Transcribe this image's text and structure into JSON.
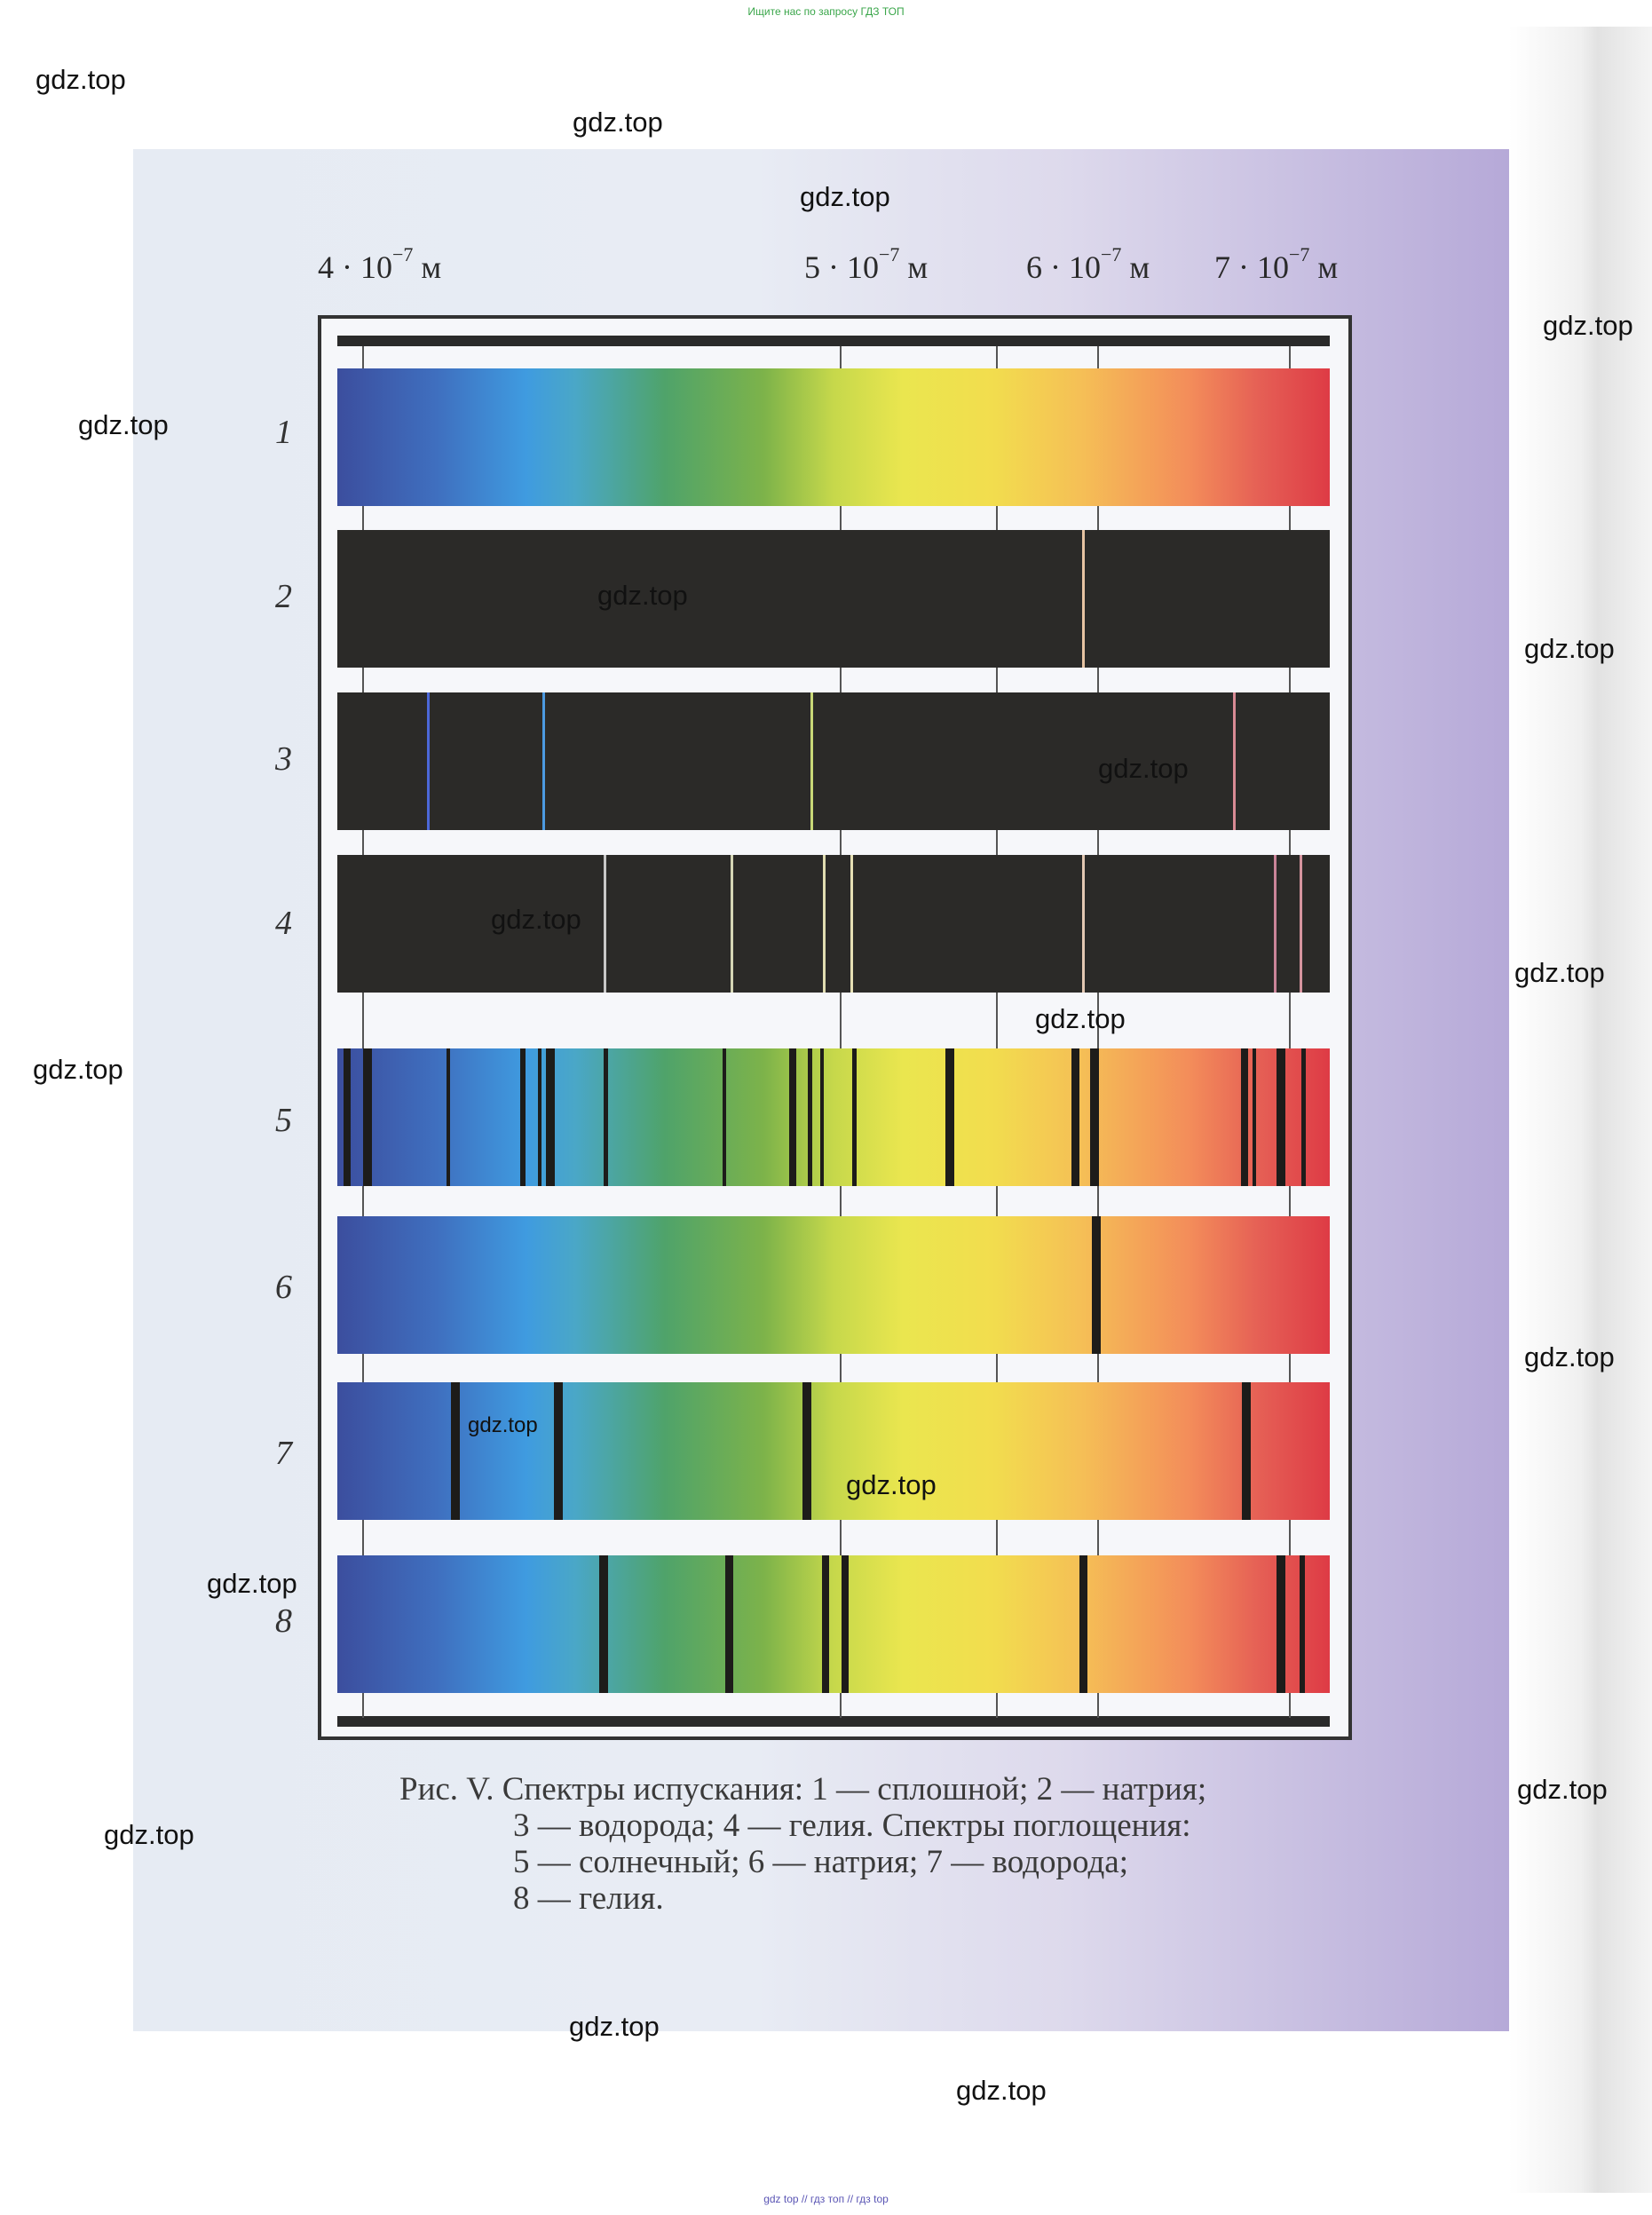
{
  "banner_top": "Ищите нас по запросу ГДЗ ТОП",
  "banner_bottom": "gdz top  //  гдз топ  //  гдз top",
  "axis": {
    "labels": [
      {
        "mantissa": "4 · 10",
        "exp": "−7",
        "unit": "м"
      },
      {
        "mantissa": "5 · 10",
        "exp": "−7",
        "unit": "м"
      },
      {
        "mantissa": "6 · 10",
        "exp": "−7",
        "unit": "м"
      },
      {
        "mantissa": "7 · 10",
        "exp": "−7",
        "unit": "м"
      }
    ]
  },
  "rows": [
    {
      "num": "1",
      "kind": "continuous",
      "lines": []
    },
    {
      "num": "2",
      "kind": "emission",
      "lines": [
        {
          "at": 0.752,
          "color": "#e6c3a2"
        }
      ]
    },
    {
      "num": "3",
      "kind": "emission",
      "lines": [
        {
          "at": 0.092,
          "color": "#4c68d8"
        },
        {
          "at": 0.208,
          "color": "#4c9ae0"
        },
        {
          "at": 0.478,
          "color": "#c9d877"
        },
        {
          "at": 0.904,
          "color": "#d88a94"
        }
      ]
    },
    {
      "num": "4",
      "kind": "emission",
      "lines": [
        {
          "at": 0.27,
          "color": "#c7c7c7"
        },
        {
          "at": 0.398,
          "color": "#d5d6b5"
        },
        {
          "at": 0.491,
          "color": "#e0dcb0"
        },
        {
          "at": 0.518,
          "color": "#e6e0b4"
        },
        {
          "at": 0.752,
          "color": "#e2c7b2"
        },
        {
          "at": 0.945,
          "color": "#c98498"
        },
        {
          "at": 0.971,
          "color": "#d6949e"
        }
      ]
    },
    {
      "num": "5",
      "kind": "absorption",
      "lines": [
        {
          "at": 0.01,
          "w": 8
        },
        {
          "at": 0.03,
          "w": 10
        },
        {
          "at": 0.112,
          "w": 4
        },
        {
          "at": 0.187,
          "w": 6
        },
        {
          "at": 0.204,
          "w": 4
        },
        {
          "at": 0.215,
          "w": 10
        },
        {
          "at": 0.271,
          "w": 5
        },
        {
          "at": 0.39,
          "w": 4
        },
        {
          "at": 0.459,
          "w": 8
        },
        {
          "at": 0.476,
          "w": 5
        },
        {
          "at": 0.488,
          "w": 4
        },
        {
          "at": 0.521,
          "w": 5
        },
        {
          "at": 0.617,
          "w": 10
        },
        {
          "at": 0.744,
          "w": 9
        },
        {
          "at": 0.763,
          "w": 10
        },
        {
          "at": 0.914,
          "w": 8
        },
        {
          "at": 0.924,
          "w": 4
        },
        {
          "at": 0.951,
          "w": 10
        },
        {
          "at": 0.974,
          "w": 5
        }
      ]
    },
    {
      "num": "6",
      "kind": "absorption",
      "lines": [
        {
          "at": 0.765,
          "w": 10
        }
      ]
    },
    {
      "num": "7",
      "kind": "absorption",
      "lines": [
        {
          "at": 0.119,
          "w": 10
        },
        {
          "at": 0.223,
          "w": 10
        },
        {
          "at": 0.473,
          "w": 10
        },
        {
          "at": 0.916,
          "w": 10
        }
      ]
    },
    {
      "num": "8",
      "kind": "absorption",
      "lines": [
        {
          "at": 0.268,
          "w": 10
        },
        {
          "at": 0.395,
          "w": 9
        },
        {
          "at": 0.492,
          "w": 8
        },
        {
          "at": 0.512,
          "w": 8
        },
        {
          "at": 0.752,
          "w": 9
        },
        {
          "at": 0.951,
          "w": 10
        },
        {
          "at": 0.972,
          "w": 6
        }
      ]
    }
  ],
  "caption": {
    "line1": "Рис. V. Спектры испускания: 1 — сплошной; 2 — натрия;",
    "line2": "3 — водорода;  4 — гелия.  Спектры  поглощения:",
    "line3": "5 — солнечный; 6 — натрия; 7 — водорода;",
    "line4": "8 — гелия."
  },
  "watermark_text": "gdz.top"
}
